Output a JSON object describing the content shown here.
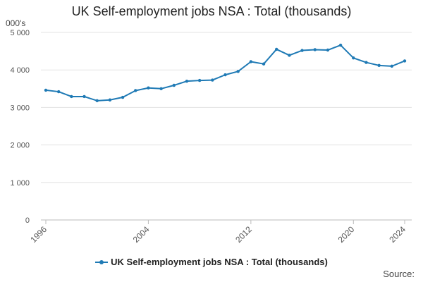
{
  "chart_data": {
    "type": "line",
    "title": "UK Self-employment jobs NSA : Total (thousands)",
    "unit_label": "000's",
    "xlabel": "",
    "ylabel": "",
    "ylim": [
      0,
      5000
    ],
    "y_ticks": [
      0,
      1000,
      2000,
      3000,
      4000,
      5000
    ],
    "y_tick_labels": [
      "0",
      "1 000",
      "2 000",
      "3 000",
      "4 000",
      "5 000"
    ],
    "x_ticks": [
      1996,
      2004,
      2012,
      2020,
      2024
    ],
    "x_tick_labels": [
      "1996",
      "2004",
      "2012",
      "2020",
      "2024"
    ],
    "xlim": [
      1996,
      2024
    ],
    "grid": "horizontal",
    "legend_position": "bottom",
    "x": [
      1996,
      1997,
      1998,
      1999,
      2000,
      2001,
      2002,
      2003,
      2004,
      2005,
      2006,
      2007,
      2008,
      2009,
      2010,
      2011,
      2012,
      2013,
      2014,
      2015,
      2016,
      2017,
      2018,
      2019,
      2020,
      2021,
      2022,
      2023,
      2024
    ],
    "series": [
      {
        "name": "UK Self-employment jobs NSA : Total (thousands)",
        "color": "#1f7ab5",
        "values": [
          3460,
          3420,
          3290,
          3290,
          3180,
          3200,
          3270,
          3450,
          3520,
          3500,
          3590,
          3700,
          3720,
          3730,
          3870,
          3960,
          4220,
          4160,
          4550,
          4390,
          4520,
          4540,
          4530,
          4660,
          4320,
          4200,
          4120,
          4100,
          4240
        ]
      }
    ],
    "source_label": "Source:"
  }
}
